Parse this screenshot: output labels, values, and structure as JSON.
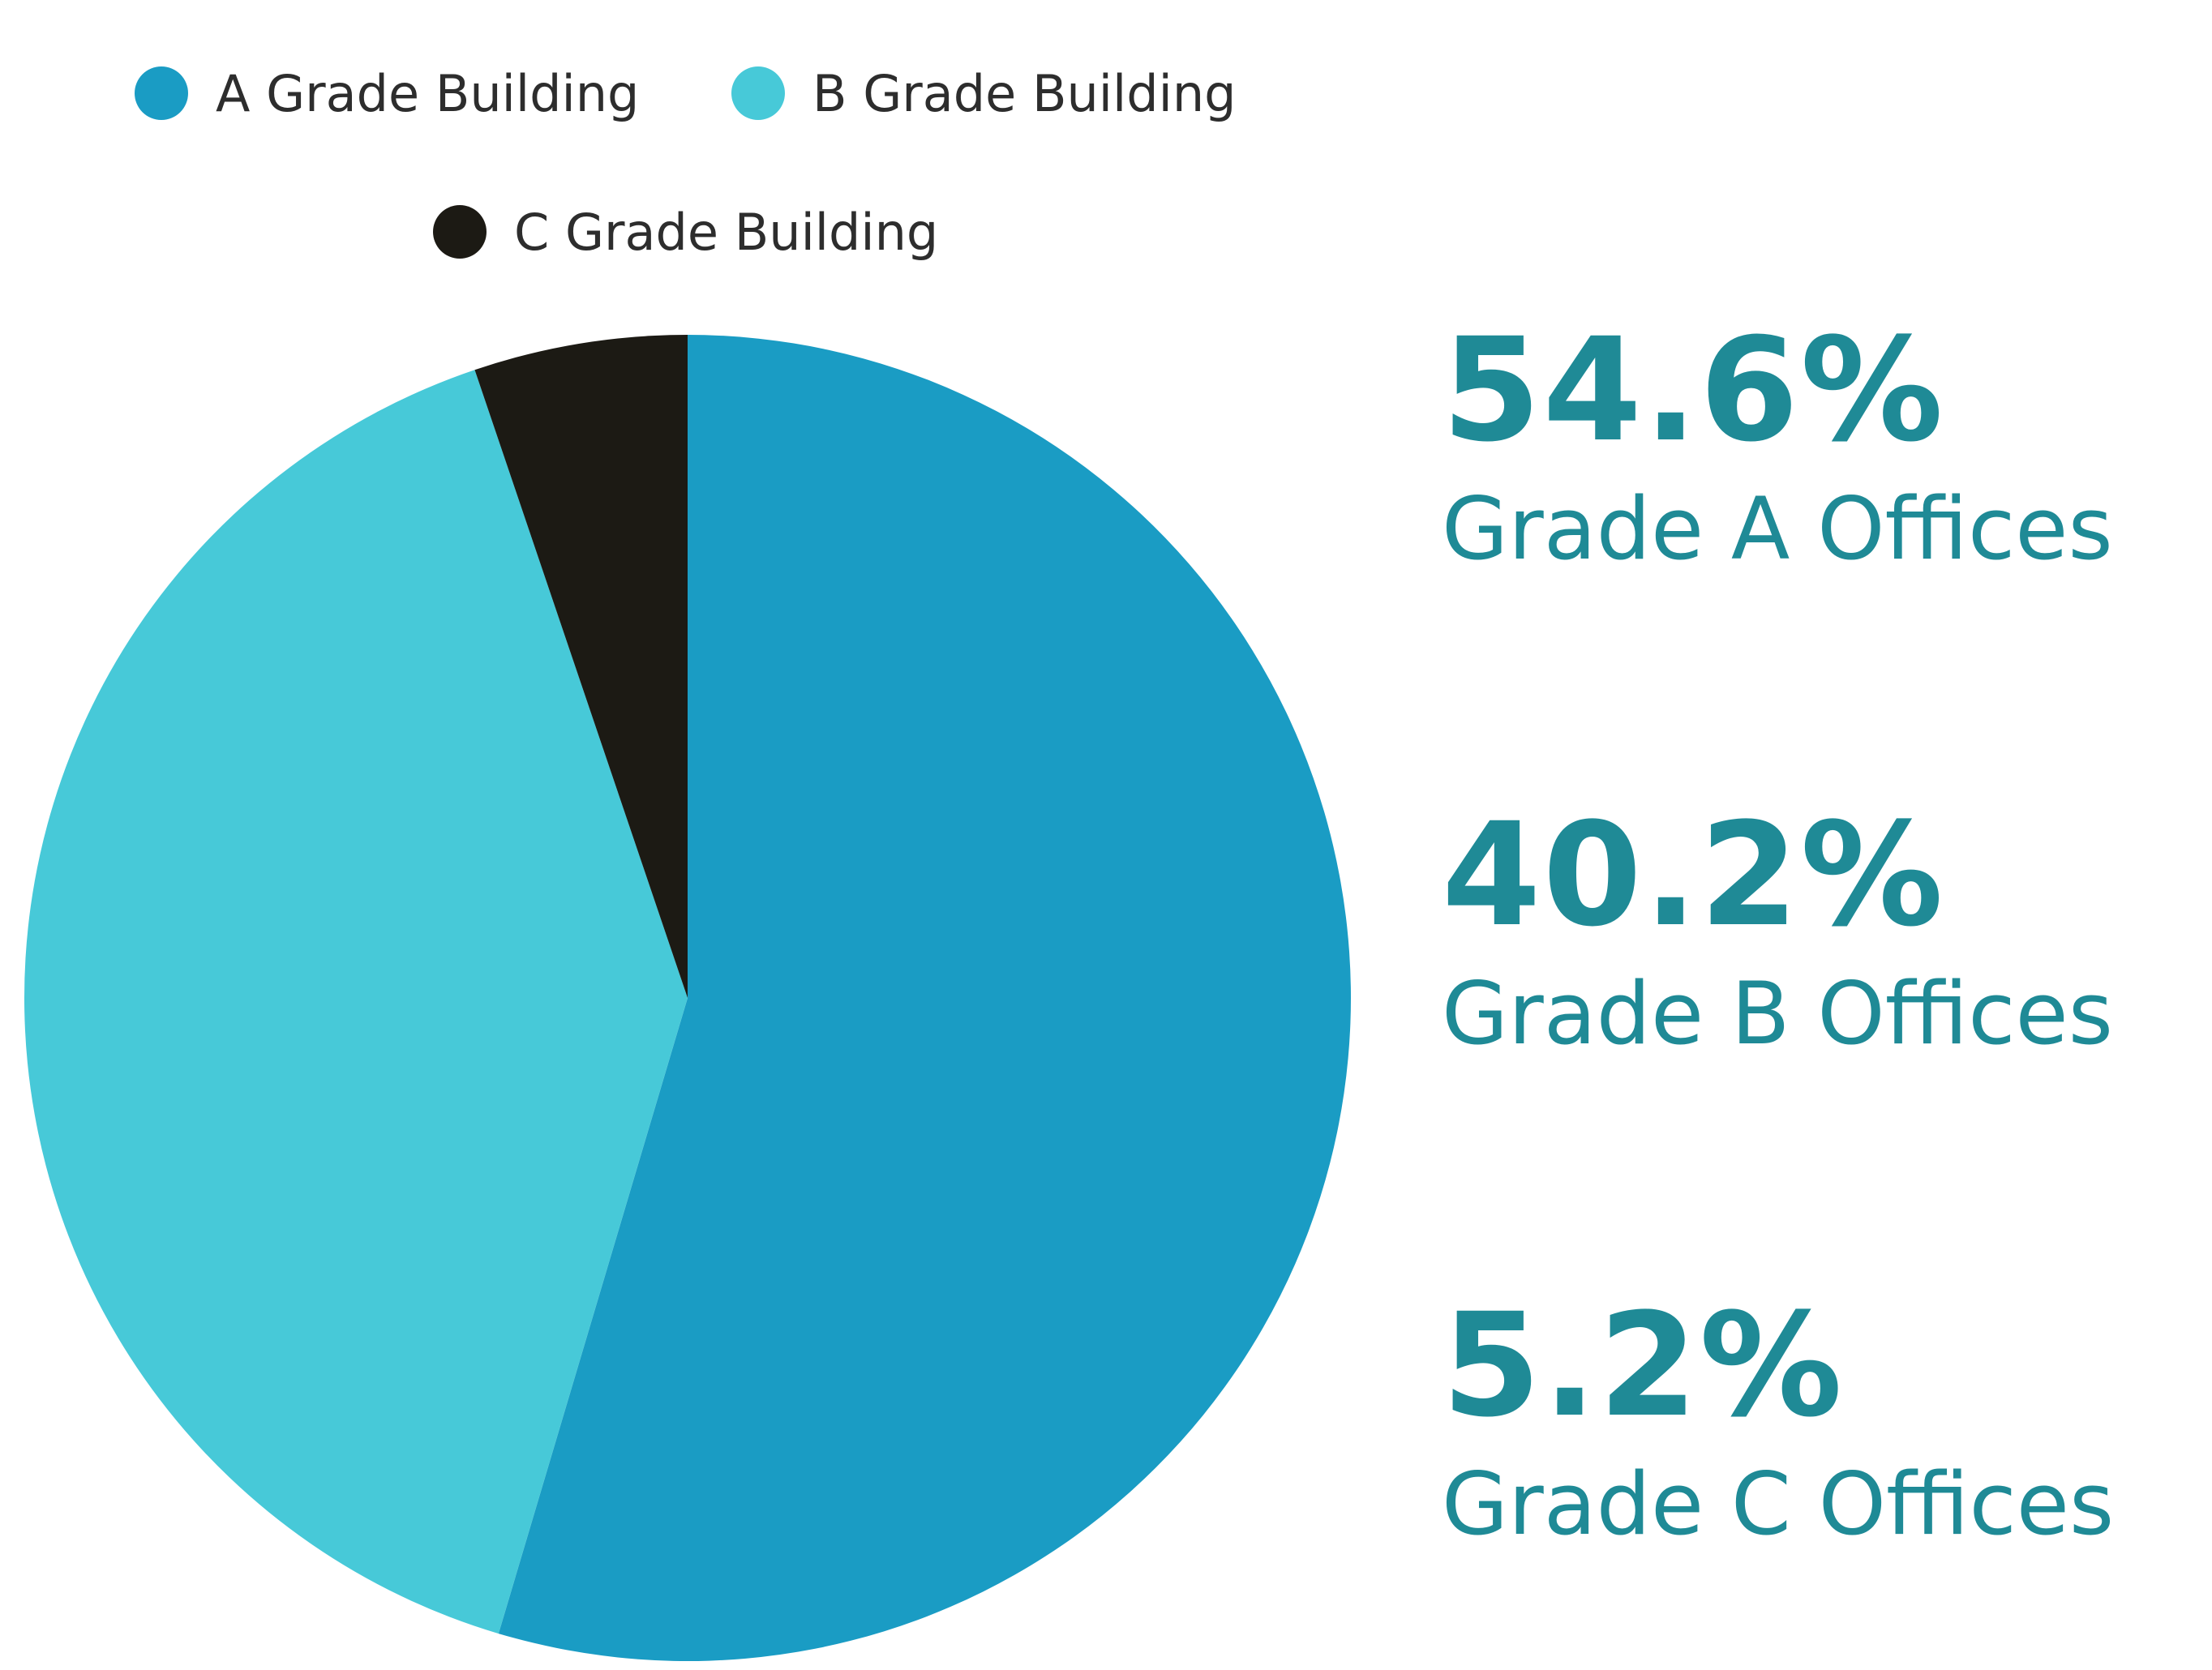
{
  "chart_data": {
    "type": "pie",
    "categories": [
      "A Grade Building",
      "B Grade Building",
      "C Grade Building"
    ],
    "values": [
      54.6,
      40.2,
      5.2
    ],
    "colors": [
      "#1a9cc4",
      "#47c9d8",
      "#1c1a14"
    ],
    "legend_position": "top",
    "title": "",
    "start_angle": "12 o'clock, clockwise"
  },
  "legend": [
    {
      "label": "A Grade Building",
      "color": "#1a9cc4"
    },
    {
      "label": "B Grade Building",
      "color": "#47c9d8"
    },
    {
      "label": "C Grade Building",
      "color": "#1c1a14"
    }
  ],
  "stats": [
    {
      "value": "54.6%",
      "label": "Grade A Offices"
    },
    {
      "value": "40.2%",
      "label": "Grade B Offices"
    },
    {
      "value": "5.2%",
      "label": "Grade C Offices"
    }
  ],
  "stat_color": "#1f8a96"
}
